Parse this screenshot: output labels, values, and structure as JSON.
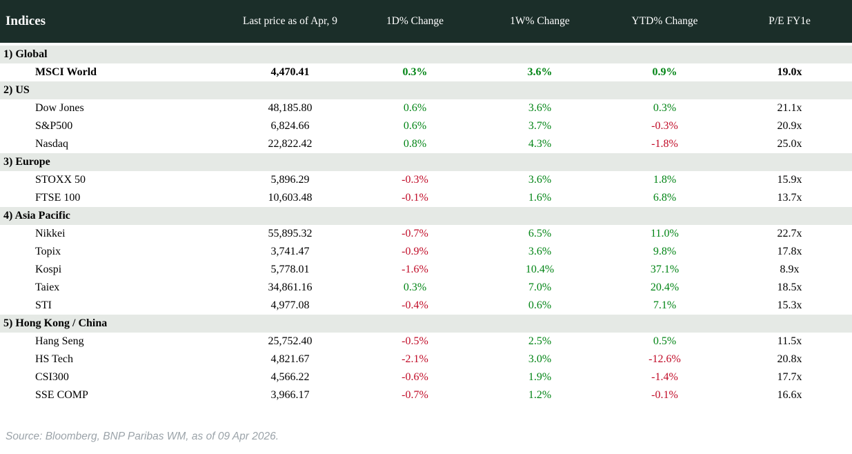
{
  "chart_data": {
    "type": "table",
    "title": "Indices",
    "columns": [
      "Last price as of Apr, 9",
      "1D% Change",
      "1W% Change",
      "YTD% Change",
      "P/E FY1e"
    ],
    "sections": [
      {
        "label": "1) Global",
        "rows": [
          {
            "name": "MSCI World",
            "price": "4,470.41",
            "d1": "0.3%",
            "w1": "3.6%",
            "ytd": "0.9%",
            "pe": "19.0x"
          }
        ]
      },
      {
        "label": "2) US",
        "rows": [
          {
            "name": "Dow Jones",
            "price": "48,185.80",
            "d1": "0.6%",
            "w1": "3.6%",
            "ytd": "0.3%",
            "pe": "21.1x"
          },
          {
            "name": "S&P500",
            "price": "6,824.66",
            "d1": "0.6%",
            "w1": "3.7%",
            "ytd": "-0.3%",
            "pe": "20.9x"
          },
          {
            "name": "Nasdaq",
            "price": "22,822.42",
            "d1": "0.8%",
            "w1": "4.3%",
            "ytd": "-1.8%",
            "pe": "25.0x"
          }
        ]
      },
      {
        "label": "3) Europe",
        "rows": [
          {
            "name": "STOXX 50",
            "price": "5,896.29",
            "d1": "-0.3%",
            "w1": "3.6%",
            "ytd": "1.8%",
            "pe": "15.9x"
          },
          {
            "name": "FTSE 100",
            "price": "10,603.48",
            "d1": "-0.1%",
            "w1": "1.6%",
            "ytd": "6.8%",
            "pe": "13.7x"
          }
        ]
      },
      {
        "label": "4) Asia Pacific",
        "rows": [
          {
            "name": "Nikkei",
            "price": "55,895.32",
            "d1": "-0.7%",
            "w1": "6.5%",
            "ytd": "11.0%",
            "pe": "22.7x"
          },
          {
            "name": "Topix",
            "price": "3,741.47",
            "d1": "-0.9%",
            "w1": "3.6%",
            "ytd": "9.8%",
            "pe": "17.8x"
          },
          {
            "name": "Kospi",
            "price": "5,778.01",
            "d1": "-1.6%",
            "w1": "10.4%",
            "ytd": "37.1%",
            "pe": "8.9x"
          },
          {
            "name": "Taiex",
            "price": "34,861.16",
            "d1": "0.3%",
            "w1": "7.0%",
            "ytd": "20.4%",
            "pe": "18.5x"
          },
          {
            "name": "STI",
            "price": "4,977.08",
            "d1": "-0.4%",
            "w1": "0.6%",
            "ytd": "7.1%",
            "pe": "15.3x"
          }
        ]
      },
      {
        "label": "5) Hong Kong / China",
        "rows": [
          {
            "name": "Hang Seng",
            "price": "25,752.40",
            "d1": "-0.5%",
            "w1": "2.5%",
            "ytd": "0.5%",
            "pe": "11.5x"
          },
          {
            "name": "HS Tech",
            "price": "4,821.67",
            "d1": "-2.1%",
            "w1": "3.0%",
            "ytd": "-12.6%",
            "pe": "20.8x"
          },
          {
            "name": "CSI300",
            "price": "4,566.22",
            "d1": "-0.6%",
            "w1": "1.9%",
            "ytd": "-1.4%",
            "pe": "17.7x"
          },
          {
            "name": "SSE COMP",
            "price": "3,966.17",
            "d1": "-0.7%",
            "w1": "1.2%",
            "ytd": "-0.1%",
            "pe": "16.6x"
          }
        ]
      }
    ]
  },
  "footer": {
    "source": "Source: Bloomberg, BNP Paribas WM, as of 09 Apr 2026."
  },
  "colors": {
    "header_bg": "#1b2e29",
    "section_bg": "#e5e9e5",
    "positive": "#008414",
    "negative": "#c00a26",
    "footer_text": "#9ba3a9"
  }
}
